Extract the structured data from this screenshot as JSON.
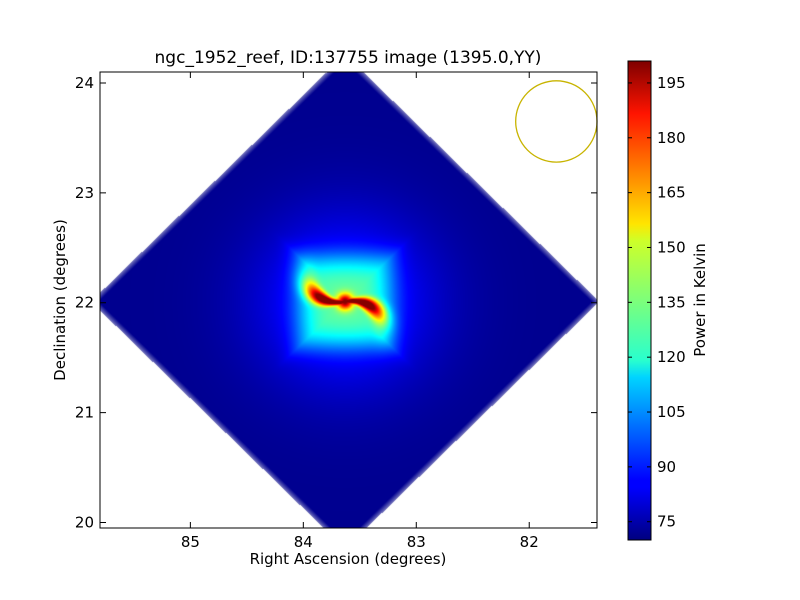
{
  "chart_data": {
    "type": "heatmap",
    "title": "ngc_1952_reef, ID:137755 image (1395.0,YY)",
    "xlabel": "Right Ascension (degrees)",
    "ylabel": "Declination (degrees)",
    "xlim": [
      85.8,
      81.4
    ],
    "ylim": [
      19.95,
      24.1
    ],
    "x_ticks": [
      85,
      84,
      83,
      82
    ],
    "y_ticks": [
      20,
      21,
      22,
      23,
      24
    ],
    "x_tick_labels": [
      "85",
      "84",
      "83",
      "82"
    ],
    "y_tick_labels": [
      "20",
      "21",
      "22",
      "23",
      "24"
    ],
    "colormap": "jet",
    "colorbar": {
      "label": "Power in Kelvin",
      "range": [
        70,
        201
      ],
      "ticks": [
        75,
        90,
        105,
        120,
        135,
        150,
        165,
        180,
        195
      ],
      "tick_labels": [
        "75",
        "90",
        "105",
        "120",
        "135",
        "150",
        "165",
        "180",
        "195"
      ]
    },
    "image": {
      "footprint": "diamond",
      "center_ra": 83.63,
      "center_dec": 22.01,
      "half_width_ra": 2.25,
      "half_width_dec": 2.25,
      "background_value": 72,
      "peak_value": 200,
      "peak_ra": 83.63,
      "peak_dec": 22.01,
      "structure": "four-armed pinwheel"
    },
    "beam_circle": {
      "center_ra": 81.76,
      "center_dec": 23.65,
      "radius_deg": 0.37,
      "color": "#c8b400"
    }
  }
}
